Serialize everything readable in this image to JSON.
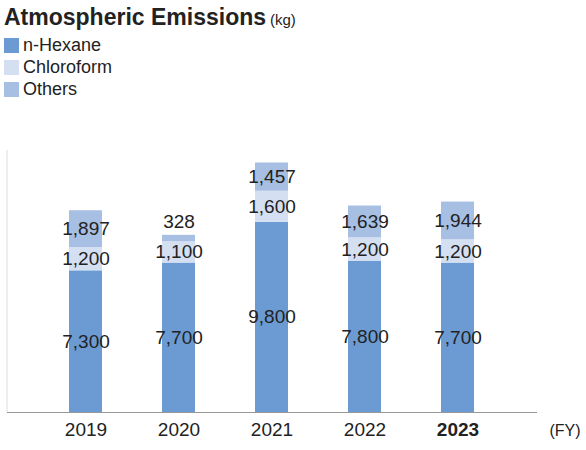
{
  "chart_data": {
    "type": "bar",
    "title": "Atmospheric Emissions",
    "subtitle": "(kg)",
    "x_label": "(FY)",
    "categories": [
      "2019",
      "2020",
      "2021",
      "2022",
      "2023"
    ],
    "series": [
      {
        "name": "n-Hexane",
        "color": "#6c9bd3",
        "values": [
          7300,
          7700,
          9800,
          7800,
          7700
        ],
        "value_labels": [
          "7,300",
          "7,700",
          "9,800",
          "7,800",
          "7,700"
        ]
      },
      {
        "name": "Chloroform",
        "color": "#d5dff2",
        "values": [
          1200,
          1100,
          1600,
          1200,
          1200
        ],
        "value_labels": [
          "1,200",
          "1,100",
          "1,600",
          "1,200",
          "1,200"
        ]
      },
      {
        "name": "Others",
        "color": "#a7bfe3",
        "values": [
          1897,
          328,
          1457,
          1639,
          1944
        ],
        "value_labels": [
          "1,897",
          "328",
          "1,457",
          "1,639",
          "1,944"
        ]
      }
    ],
    "stacked": true,
    "data_labels": true,
    "legend": "top-left",
    "ylim": [
      0,
      13500
    ],
    "yticks": [],
    "tick_labels": "x",
    "grid": false
  }
}
